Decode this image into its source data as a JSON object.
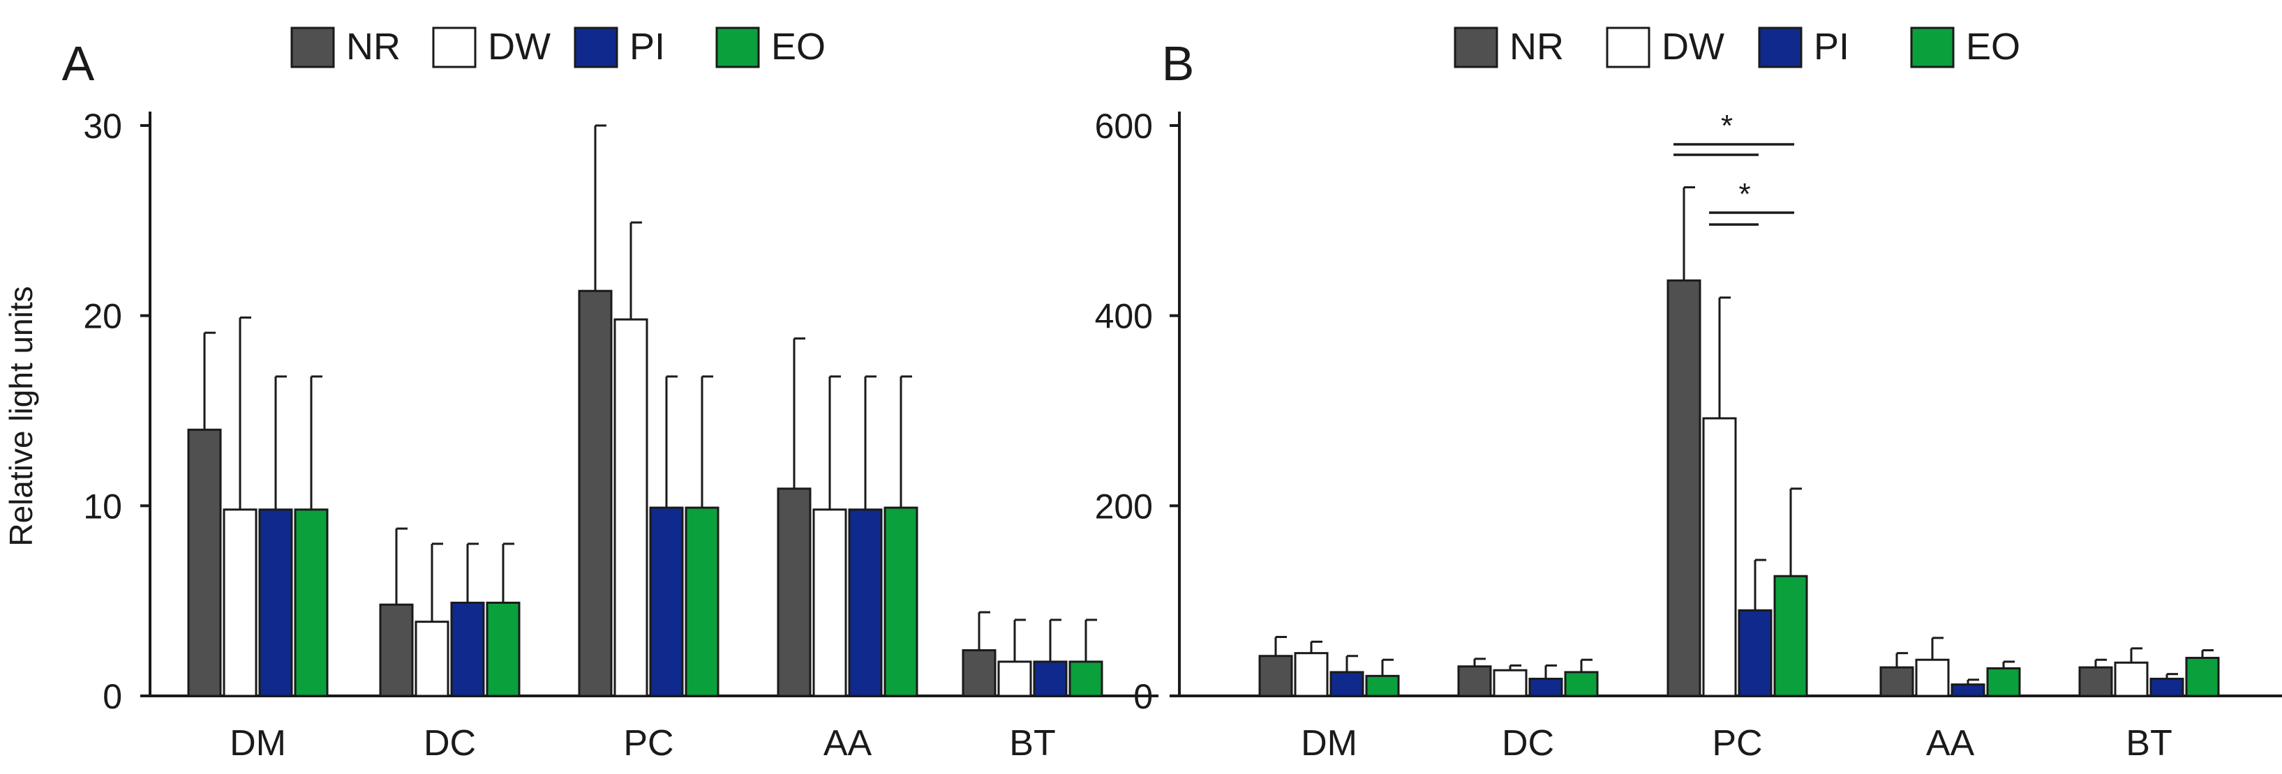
{
  "legend": [
    {
      "name": "NR",
      "color": "#505050"
    },
    {
      "name": "DW",
      "color": "#ffffff"
    },
    {
      "name": "PI",
      "color": "#0f2a8c"
    },
    {
      "name": "EO",
      "color": "#0aa03c"
    }
  ],
  "chart_data": [
    {
      "panel_label": "A",
      "type": "bar",
      "ylabel": "Relative light units",
      "xlabel": "",
      "ylim": [
        0,
        30
      ],
      "yticks": [
        0,
        10,
        20,
        30
      ],
      "categories": [
        "DM",
        "DC",
        "PC",
        "AA",
        "BT"
      ],
      "series": [
        {
          "name": "NR",
          "values": [
            14.0,
            4.8,
            21.3,
            10.9,
            2.4
          ],
          "errors": [
            5.1,
            4.0,
            8.7,
            7.9,
            2.0
          ]
        },
        {
          "name": "DW",
          "values": [
            9.8,
            3.9,
            19.8,
            9.8,
            1.8
          ],
          "errors": [
            10.1,
            4.1,
            5.1,
            7.0,
            2.2
          ]
        },
        {
          "name": "PI",
          "values": [
            9.8,
            4.9,
            9.9,
            9.8,
            1.8
          ],
          "errors": [
            7.0,
            3.1,
            6.9,
            7.0,
            2.2
          ]
        },
        {
          "name": "EO",
          "values": [
            9.8,
            4.9,
            9.9,
            9.9,
            1.8
          ],
          "errors": [
            7.0,
            3.1,
            6.9,
            6.9,
            2.2
          ]
        }
      ],
      "significance": []
    },
    {
      "panel_label": "B",
      "type": "bar",
      "ylabel": "",
      "xlabel": "",
      "ylim": [
        0,
        600
      ],
      "yticks": [
        0,
        200,
        400,
        600
      ],
      "categories": [
        "DM",
        "DC",
        "PC",
        "AA",
        "BT"
      ],
      "series": [
        {
          "name": "NR",
          "values": [
            42,
            31,
            437,
            30,
            30
          ],
          "errors": [
            20,
            8,
            98,
            15,
            8
          ]
        },
        {
          "name": "DW",
          "values": [
            45,
            27,
            292,
            38,
            35
          ],
          "errors": [
            12,
            5,
            127,
            23,
            15
          ]
        },
        {
          "name": "PI",
          "values": [
            25,
            18,
            90,
            12,
            18
          ],
          "errors": [
            17,
            14,
            53,
            5,
            5
          ]
        },
        {
          "name": "EO",
          "values": [
            21,
            25,
            126,
            29,
            40
          ],
          "errors": [
            17,
            13,
            92,
            7,
            8
          ]
        }
      ],
      "significance": [
        {
          "label": "*",
          "category": "PC",
          "brackets": [
            [
              "NR",
              "PI"
            ],
            [
              "NR",
              "EO"
            ]
          ],
          "label_above": "top"
        },
        {
          "label": "*",
          "category": "PC",
          "brackets": [
            [
              "DW",
              "PI"
            ],
            [
              "DW",
              "EO"
            ]
          ],
          "label_above": "top"
        }
      ]
    }
  ]
}
